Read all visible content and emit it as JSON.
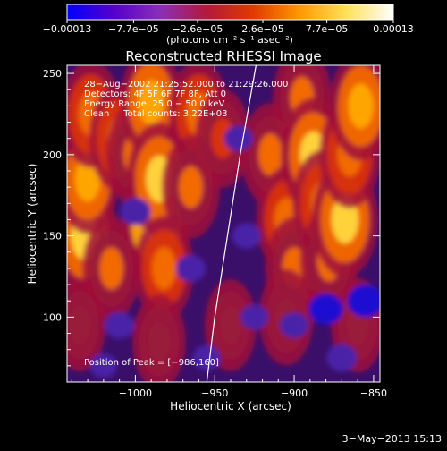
{
  "chart_data": {
    "type": "heatmap",
    "title": "Reconstructed RHESSI Image",
    "xlabel": "Heliocentric X (arcsec)",
    "ylabel": "Heliocentric Y (arcsec)",
    "xlim": [
      -1043,
      -846
    ],
    "ylim": [
      60,
      255
    ],
    "xticks": [
      -1000,
      -950,
      -900,
      -850
    ],
    "xtick_labels": [
      "−1000",
      "−950",
      "−900",
      "−850"
    ],
    "yticks": [
      100,
      150,
      200,
      250
    ],
    "ytick_labels": [
      "100",
      "150",
      "200",
      "250"
    ],
    "colorbar": {
      "range": [
        -0.00013,
        0.00013
      ],
      "ticks": [
        -0.00013,
        -7.7e-05,
        -2.6e-05,
        2.6e-05,
        7.7e-05,
        0.00013
      ],
      "tick_labels": [
        "−0.00013",
        "−7.7e−05",
        "−2.6e−05",
        "2.6e−05",
        "7.7e−05",
        "0.00013"
      ],
      "unit_label": "(photons cm⁻² s⁻¹ asec⁻²)",
      "colormap": [
        "#0000ff",
        "#5500cc",
        "#8a2fb8",
        "#b3183a",
        "#e13a00",
        "#ff9a00",
        "#ffe15a",
        "#ffffff"
      ]
    },
    "annotations": [
      "28−Aug−2002 21:25:52.000 to 21:29:26.000",
      "Detectors: 4F 5F 6F 7F 8F, Att 0",
      "Energy Range: 25.0 − 50.0 keV",
      "Clean     Total counts: 3.22E+03"
    ],
    "peak_text": "Position of Peak = [−986,160]",
    "peak": [
      -986,
      160
    ],
    "limb_curve": [
      [
        -955,
        60
      ],
      [
        -950,
        100
      ],
      [
        -942,
        150
      ],
      [
        -934,
        200
      ],
      [
        -924,
        255
      ]
    ],
    "bright_sources": [
      {
        "x": -1032,
        "y": 150,
        "v": 0.9
      },
      {
        "x": -1030,
        "y": 185,
        "v": 0.75
      },
      {
        "x": -1028,
        "y": 225,
        "v": 0.7
      },
      {
        "x": -1010,
        "y": 210,
        "v": 0.7
      },
      {
        "x": -1000,
        "y": 200,
        "v": 0.6
      },
      {
        "x": -1015,
        "y": 130,
        "v": 0.6
      },
      {
        "x": -990,
        "y": 232,
        "v": 0.75
      },
      {
        "x": -987,
        "y": 160,
        "v": 1.0
      },
      {
        "x": -985,
        "y": 185,
        "v": 0.85
      },
      {
        "x": -982,
        "y": 130,
        "v": 0.65
      },
      {
        "x": -960,
        "y": 225,
        "v": 0.7
      },
      {
        "x": -965,
        "y": 180,
        "v": 0.6
      },
      {
        "x": -945,
        "y": 210,
        "v": 0.5
      },
      {
        "x": -915,
        "y": 200,
        "v": 0.6
      },
      {
        "x": -905,
        "y": 160,
        "v": 0.65
      },
      {
        "x": -900,
        "y": 130,
        "v": 0.6
      },
      {
        "x": -895,
        "y": 235,
        "v": 0.6
      },
      {
        "x": -888,
        "y": 200,
        "v": 0.85
      },
      {
        "x": -882,
        "y": 170,
        "v": 0.7
      },
      {
        "x": -878,
        "y": 135,
        "v": 0.6
      },
      {
        "x": -868,
        "y": 160,
        "v": 0.9
      },
      {
        "x": -865,
        "y": 200,
        "v": 0.7
      },
      {
        "x": -858,
        "y": 230,
        "v": 0.75
      },
      {
        "x": -1035,
        "y": 95,
        "v": 0.35
      },
      {
        "x": -985,
        "y": 85,
        "v": 0.4
      },
      {
        "x": -940,
        "y": 95,
        "v": 0.35
      },
      {
        "x": -905,
        "y": 100,
        "v": 0.45
      },
      {
        "x": -860,
        "y": 95,
        "v": 0.4
      }
    ],
    "dark_sources": [
      {
        "x": -1000,
        "y": 165,
        "v": 0.6
      },
      {
        "x": -1010,
        "y": 95,
        "v": 0.55
      },
      {
        "x": -965,
        "y": 130,
        "v": 0.55
      },
      {
        "x": -930,
        "y": 150,
        "v": 0.5
      },
      {
        "x": -935,
        "y": 210,
        "v": 0.5
      },
      {
        "x": -925,
        "y": 100,
        "v": 0.45
      },
      {
        "x": -900,
        "y": 95,
        "v": 0.5
      },
      {
        "x": -880,
        "y": 105,
        "v": 0.8
      },
      {
        "x": -855,
        "y": 110,
        "v": 0.9
      },
      {
        "x": -870,
        "y": 75,
        "v": 0.6
      },
      {
        "x": -955,
        "y": 75,
        "v": 0.45
      },
      {
        "x": -1020,
        "y": 70,
        "v": 0.4
      }
    ]
  },
  "footer_date": "3−May−2013 15:13"
}
